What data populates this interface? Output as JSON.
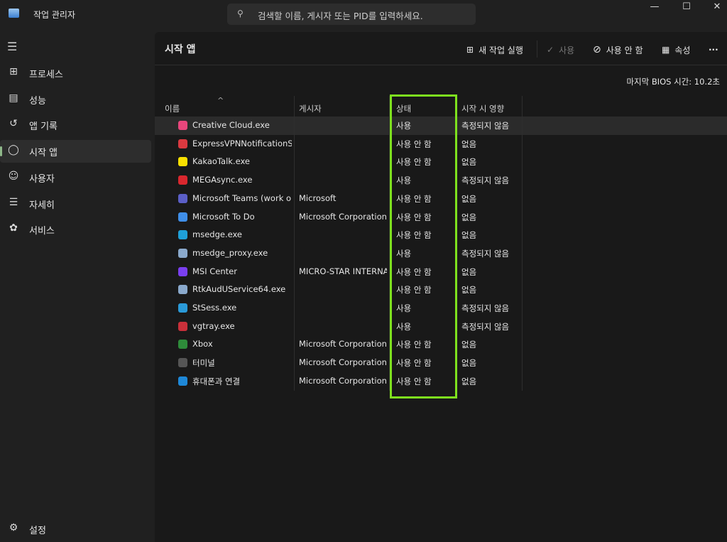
{
  "app": {
    "title": "작업 관리자",
    "icon": "task-manager-icon"
  },
  "search": {
    "placeholder": "검색할 이름, 게시자 또는 PID를 입력하세요.",
    "icon": "search-icon"
  },
  "window_controls": [
    "minimize",
    "maximize",
    "close"
  ],
  "sidebar": {
    "items": [
      {
        "label": "프로세스",
        "icon": "processes-icon"
      },
      {
        "label": "성능",
        "icon": "performance-icon"
      },
      {
        "label": "앱 기록",
        "icon": "history-icon"
      },
      {
        "label": "시작 앱",
        "icon": "startup-icon",
        "selected": true
      },
      {
        "label": "사용자",
        "icon": "users-icon"
      },
      {
        "label": "자세히",
        "icon": "details-icon"
      },
      {
        "label": "서비스",
        "icon": "services-icon"
      }
    ],
    "settings": {
      "label": "설정",
      "icon": "gear-icon"
    }
  },
  "header": {
    "title": "시작 앱",
    "run_new_task": "새 작업 실행",
    "enable": "사용",
    "disable": "사용 안 함",
    "properties": "속성",
    "more": "···"
  },
  "bios_time": "마지막 BIOS 시간:  10.2초",
  "table": {
    "columns": {
      "name": "이름",
      "publisher": "게시자",
      "status": "상태",
      "impact": "시작 시 영향"
    },
    "sort_indicator": "^",
    "rows": [
      {
        "name": "Creative Cloud.exe",
        "publisher": "",
        "status": "사용",
        "impact": "측정되지 않음",
        "color": "#e8467c"
      },
      {
        "name": "ExpressVPNNotificationSe...",
        "publisher": "",
        "status": "사용 안 함",
        "impact": "없음",
        "color": "#da3940"
      },
      {
        "name": "KakaoTalk.exe",
        "publisher": "",
        "status": "사용 안 함",
        "impact": "없음",
        "color": "#f9e000"
      },
      {
        "name": "MEGAsync.exe",
        "publisher": "",
        "status": "사용",
        "impact": "측정되지 않음",
        "color": "#d9272e"
      },
      {
        "name": "Microsoft Teams (work or...",
        "publisher": "Microsoft",
        "status": "사용 안 함",
        "impact": "없음",
        "color": "#5b5fc7"
      },
      {
        "name": "Microsoft To Do",
        "publisher": "Microsoft Corporation",
        "status": "사용 안 함",
        "impact": "없음",
        "color": "#3f8ee8"
      },
      {
        "name": "msedge.exe",
        "publisher": "",
        "status": "사용 안 함",
        "impact": "없음",
        "color": "#1fa0d8"
      },
      {
        "name": "msedge_proxy.exe",
        "publisher": "",
        "status": "사용",
        "impact": "측정되지 않음",
        "color": "#8aa9cc"
      },
      {
        "name": "MSI Center",
        "publisher": "MICRO-STAR INTERNA...",
        "status": "사용 안 함",
        "impact": "없음",
        "color": "#7a3ff0"
      },
      {
        "name": "RtkAudUService64.exe",
        "publisher": "",
        "status": "사용 안 함",
        "impact": "없음",
        "color": "#8aa9cc"
      },
      {
        "name": "StSess.exe",
        "publisher": "",
        "status": "사용",
        "impact": "측정되지 않음",
        "color": "#2a9ad8"
      },
      {
        "name": "vgtray.exe",
        "publisher": "",
        "status": "사용",
        "impact": "측정되지 않음",
        "color": "#c9303a"
      },
      {
        "name": "Xbox",
        "publisher": "Microsoft Corporation",
        "status": "사용 안 함",
        "impact": "없음",
        "color": "#2e8b3a"
      },
      {
        "name": "터미널",
        "publisher": "Microsoft Corporation",
        "status": "사용 안 함",
        "impact": "없음",
        "color": "#555555"
      },
      {
        "name": "휴대폰과 연결",
        "publisher": "Microsoft Corporation",
        "status": "사용 안 함",
        "impact": "없음",
        "color": "#1e88d8"
      }
    ]
  },
  "highlight_color": "#7ee11e"
}
